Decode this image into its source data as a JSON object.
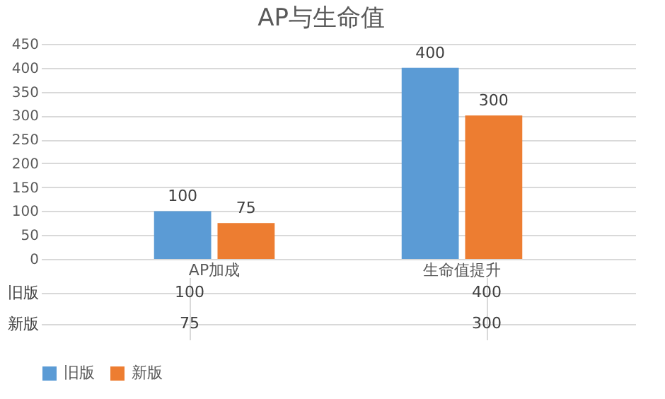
{
  "chart_data": {
    "type": "bar",
    "title": "AP与生命值",
    "categories": [
      "AP加成",
      "生命值提升"
    ],
    "series": [
      {
        "name": "旧版",
        "color": "#5b9bd5",
        "values": [
          100,
          400
        ],
        "value_labels": [
          "100",
          "400"
        ]
      },
      {
        "name": "新版",
        "color": "#ed7d31",
        "values": [
          75,
          300
        ],
        "value_labels": [
          "75",
          "300"
        ]
      }
    ],
    "annotations": [
      "100",
      "400",
      "75",
      "300"
    ],
    "ylim": [
      0,
      450
    ],
    "yticks": [
      0,
      50,
      100,
      150,
      200,
      250,
      300,
      350,
      400,
      450
    ],
    "grid": "y",
    "legend": "bottom"
  }
}
